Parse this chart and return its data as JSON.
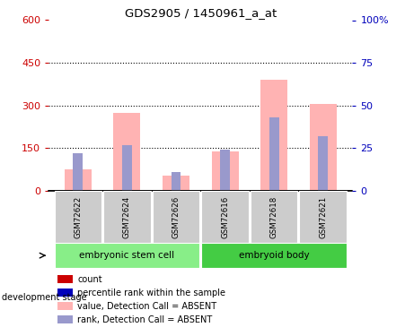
{
  "title": "GDS2905 / 1450961_a_at",
  "samples": [
    "GSM72622",
    "GSM72624",
    "GSM72626",
    "GSM72616",
    "GSM72618",
    "GSM72621"
  ],
  "groups": [
    "embryonic stem cell",
    "embryonic stem cell",
    "embryonic stem cell",
    "embryoid body",
    "embryoid body",
    "embryoid body"
  ],
  "pink_values": [
    75,
    275,
    55,
    140,
    390,
    305
  ],
  "blue_pct": [
    22,
    27,
    11,
    24,
    43,
    32
  ],
  "ylim_left": [
    0,
    600
  ],
  "ylim_right": [
    0,
    100
  ],
  "yticks_left": [
    0,
    150,
    300,
    450,
    600
  ],
  "ytick_labels_left": [
    "0",
    "150",
    "300",
    "450",
    "600"
  ],
  "yticks_right": [
    0,
    25,
    50,
    75,
    100
  ],
  "ytick_labels_right": [
    "0",
    "25",
    "50",
    "75",
    "100%"
  ],
  "left_axis_color": "#cc0000",
  "right_axis_color": "#0000bb",
  "pink_color": "#ffb3b3",
  "blue_color": "#9999cc",
  "legend_items": [
    {
      "label": "count",
      "color": "#cc0000"
    },
    {
      "label": "percentile rank within the sample",
      "color": "#0000bb"
    },
    {
      "label": "value, Detection Call = ABSENT",
      "color": "#ffb3b3"
    },
    {
      "label": "rank, Detection Call = ABSENT",
      "color": "#9999cc"
    }
  ],
  "development_stage_label": "development stage",
  "background_color": "#ffffff",
  "sample_bg": "#cccccc",
  "group1_color": "#88ee88",
  "group2_color": "#44cc44",
  "group_labels": [
    "embryonic stem cell",
    "embryoid body"
  ],
  "group_ranges": [
    [
      0,
      2
    ],
    [
      3,
      5
    ]
  ]
}
